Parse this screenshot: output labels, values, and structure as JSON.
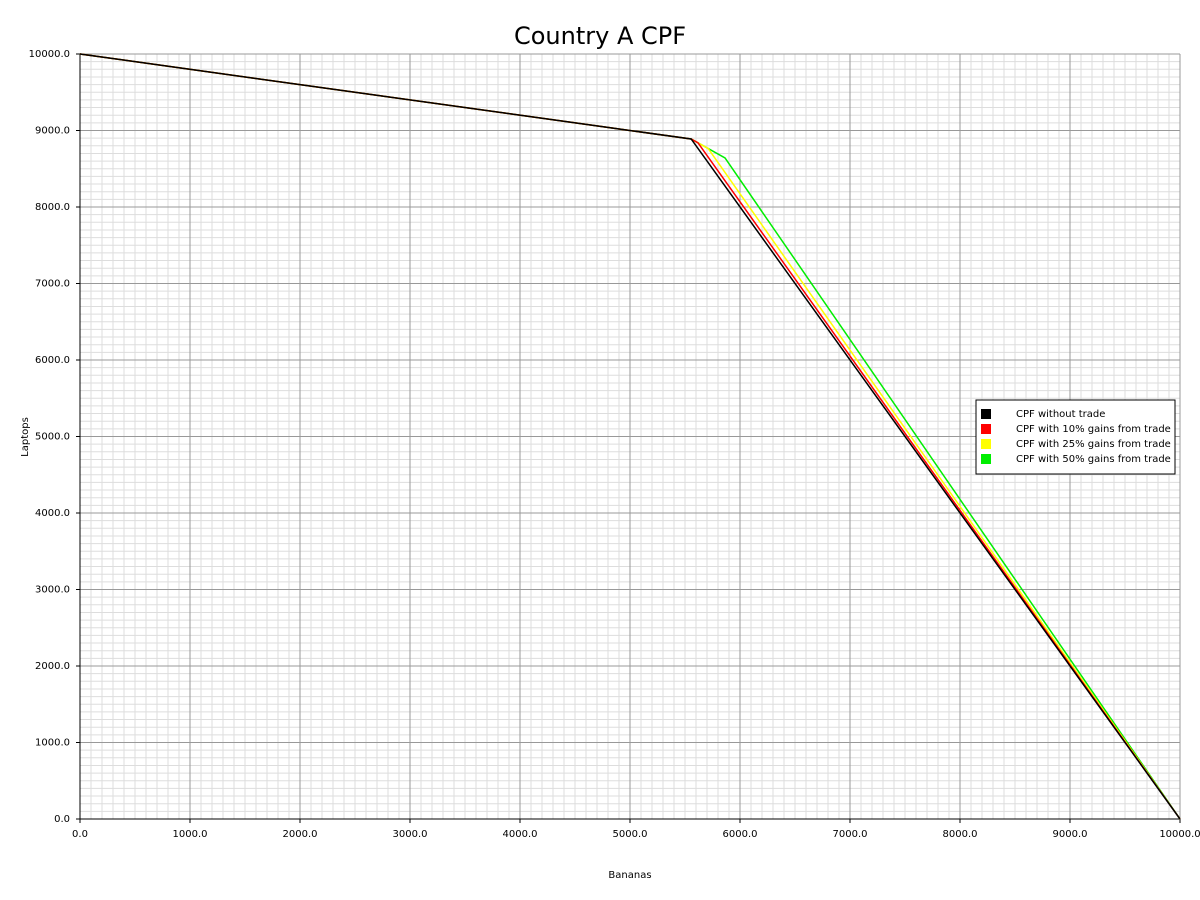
{
  "chart_data": {
    "type": "line",
    "title": "Country A CPF",
    "x_label": "Bananas",
    "y_label": "Laptops",
    "xlim": [
      0,
      10000
    ],
    "ylim": [
      0,
      10000
    ],
    "xticks": [
      {
        "value": 0,
        "label": "0.0"
      },
      {
        "value": 1000,
        "label": "1000.0"
      },
      {
        "value": 2000,
        "label": "2000.0"
      },
      {
        "value": 3000,
        "label": "3000.0"
      },
      {
        "value": 4000,
        "label": "4000.0"
      },
      {
        "value": 5000,
        "label": "5000.0"
      },
      {
        "value": 6000,
        "label": "6000.0"
      },
      {
        "value": 7000,
        "label": "7000.0"
      },
      {
        "value": 8000,
        "label": "8000.0"
      },
      {
        "value": 9000,
        "label": "9000.0"
      },
      {
        "value": 10000,
        "label": "10000.0"
      }
    ],
    "yticks": [
      {
        "value": 0,
        "label": "0.0"
      },
      {
        "value": 1000,
        "label": "1000.0"
      },
      {
        "value": 2000,
        "label": "2000.0"
      },
      {
        "value": 3000,
        "label": "3000.0"
      },
      {
        "value": 4000,
        "label": "4000.0"
      },
      {
        "value": 5000,
        "label": "5000.0"
      },
      {
        "value": 6000,
        "label": "6000.0"
      },
      {
        "value": 7000,
        "label": "7000.0"
      },
      {
        "value": 8000,
        "label": "8000.0"
      },
      {
        "value": 9000,
        "label": "9000.0"
      },
      {
        "value": 10000,
        "label": "10000.0"
      }
    ],
    "grid": true,
    "minor_grid": true,
    "legend": "right",
    "series": [
      {
        "name": "CPF with 50% gains from trade",
        "color": "#00ee00",
        "x": [
          0,
          5556,
          5864,
          10000
        ],
        "values": [
          10000,
          8889,
          8641,
          0
        ]
      },
      {
        "name": "CPF with 25% gains from trade",
        "color": "#ffff00",
        "x": [
          0,
          5556,
          5710,
          10000
        ],
        "values": [
          10000,
          8889,
          8765,
          0
        ]
      },
      {
        "name": "CPF with 10% gains from trade",
        "color": "#ff0000",
        "x": [
          0,
          5556,
          5618,
          10000
        ],
        "values": [
          10000,
          8889,
          8839,
          0
        ]
      },
      {
        "name": "CPF without trade",
        "color": "#000000",
        "x": [
          0,
          5556,
          10000
        ],
        "values": [
          10000,
          8889,
          0
        ]
      }
    ]
  }
}
